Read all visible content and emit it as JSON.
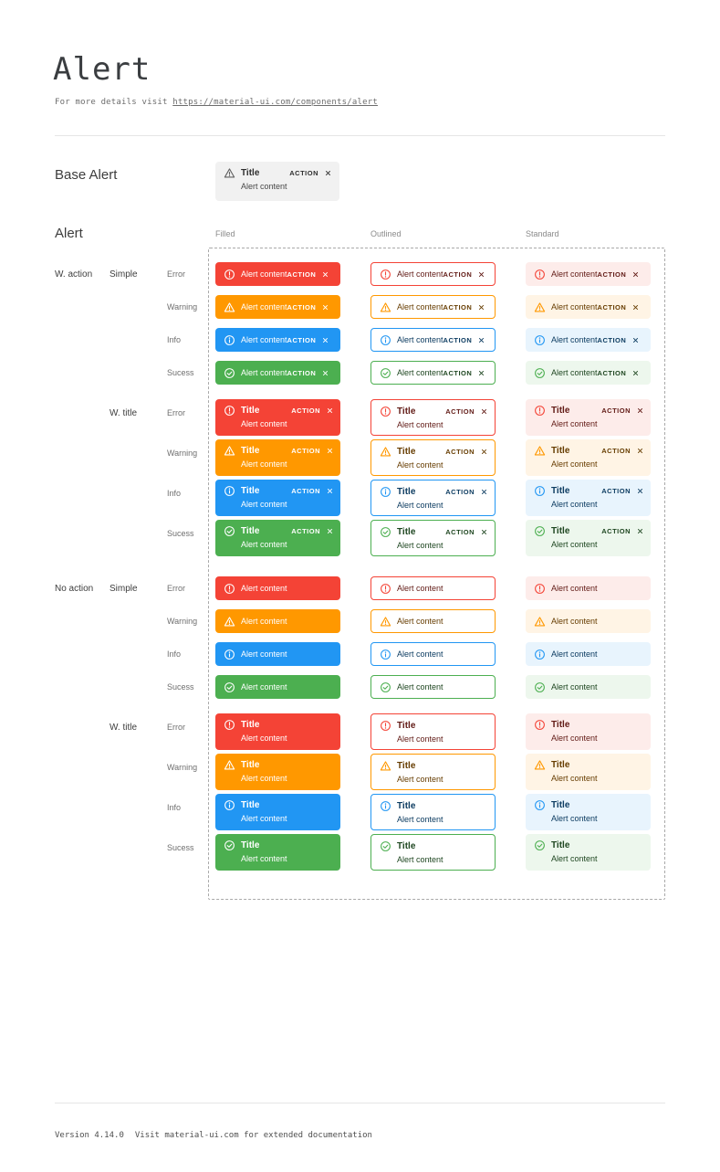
{
  "page": {
    "title": "Alert",
    "subtitle_prefix": "For more details visit ",
    "subtitle_link": "https://material-ui.com/components/alert"
  },
  "base_alert": {
    "section_label": "Base Alert",
    "title": "Title",
    "content": "Alert content",
    "action": "ACTION"
  },
  "grid": {
    "section_label": "Alert",
    "column_headers": [
      "Filled",
      "Outlined",
      "Standard"
    ],
    "alert": {
      "title": "Title",
      "content": "Alert content",
      "action": "ACTION"
    },
    "severities": [
      {
        "key": "error",
        "label": "Error",
        "icon": "error-icon",
        "main": "#f44336",
        "standard_bg": "#fdecea",
        "dark_text": "#611a15"
      },
      {
        "key": "warning",
        "label": "Warning",
        "icon": "warning-icon",
        "main": "#ff9800",
        "standard_bg": "#fff4e5",
        "dark_text": "#663c00"
      },
      {
        "key": "info",
        "label": "Info",
        "icon": "info-icon",
        "main": "#2196f3",
        "standard_bg": "#e8f4fd",
        "dark_text": "#0d3c61"
      },
      {
        "key": "success",
        "label": "Sucess",
        "icon": "success-icon",
        "main": "#4caf50",
        "standard_bg": "#edf7ed",
        "dark_text": "#1e4620"
      }
    ],
    "sections": [
      {
        "group_label": "W. action",
        "sub_label": "Simple",
        "with_title": false,
        "with_action": true
      },
      {
        "group_label": "",
        "sub_label": "W. title",
        "with_title": true,
        "with_action": true
      },
      {
        "group_label": "No action",
        "sub_label": "Simple",
        "with_title": false,
        "with_action": false
      },
      {
        "group_label": "",
        "sub_label": "W. title",
        "with_title": true,
        "with_action": false
      }
    ]
  },
  "footer": {
    "version": "Version 4.14.0",
    "note": "Visit material-ui.com for extended documentation"
  }
}
